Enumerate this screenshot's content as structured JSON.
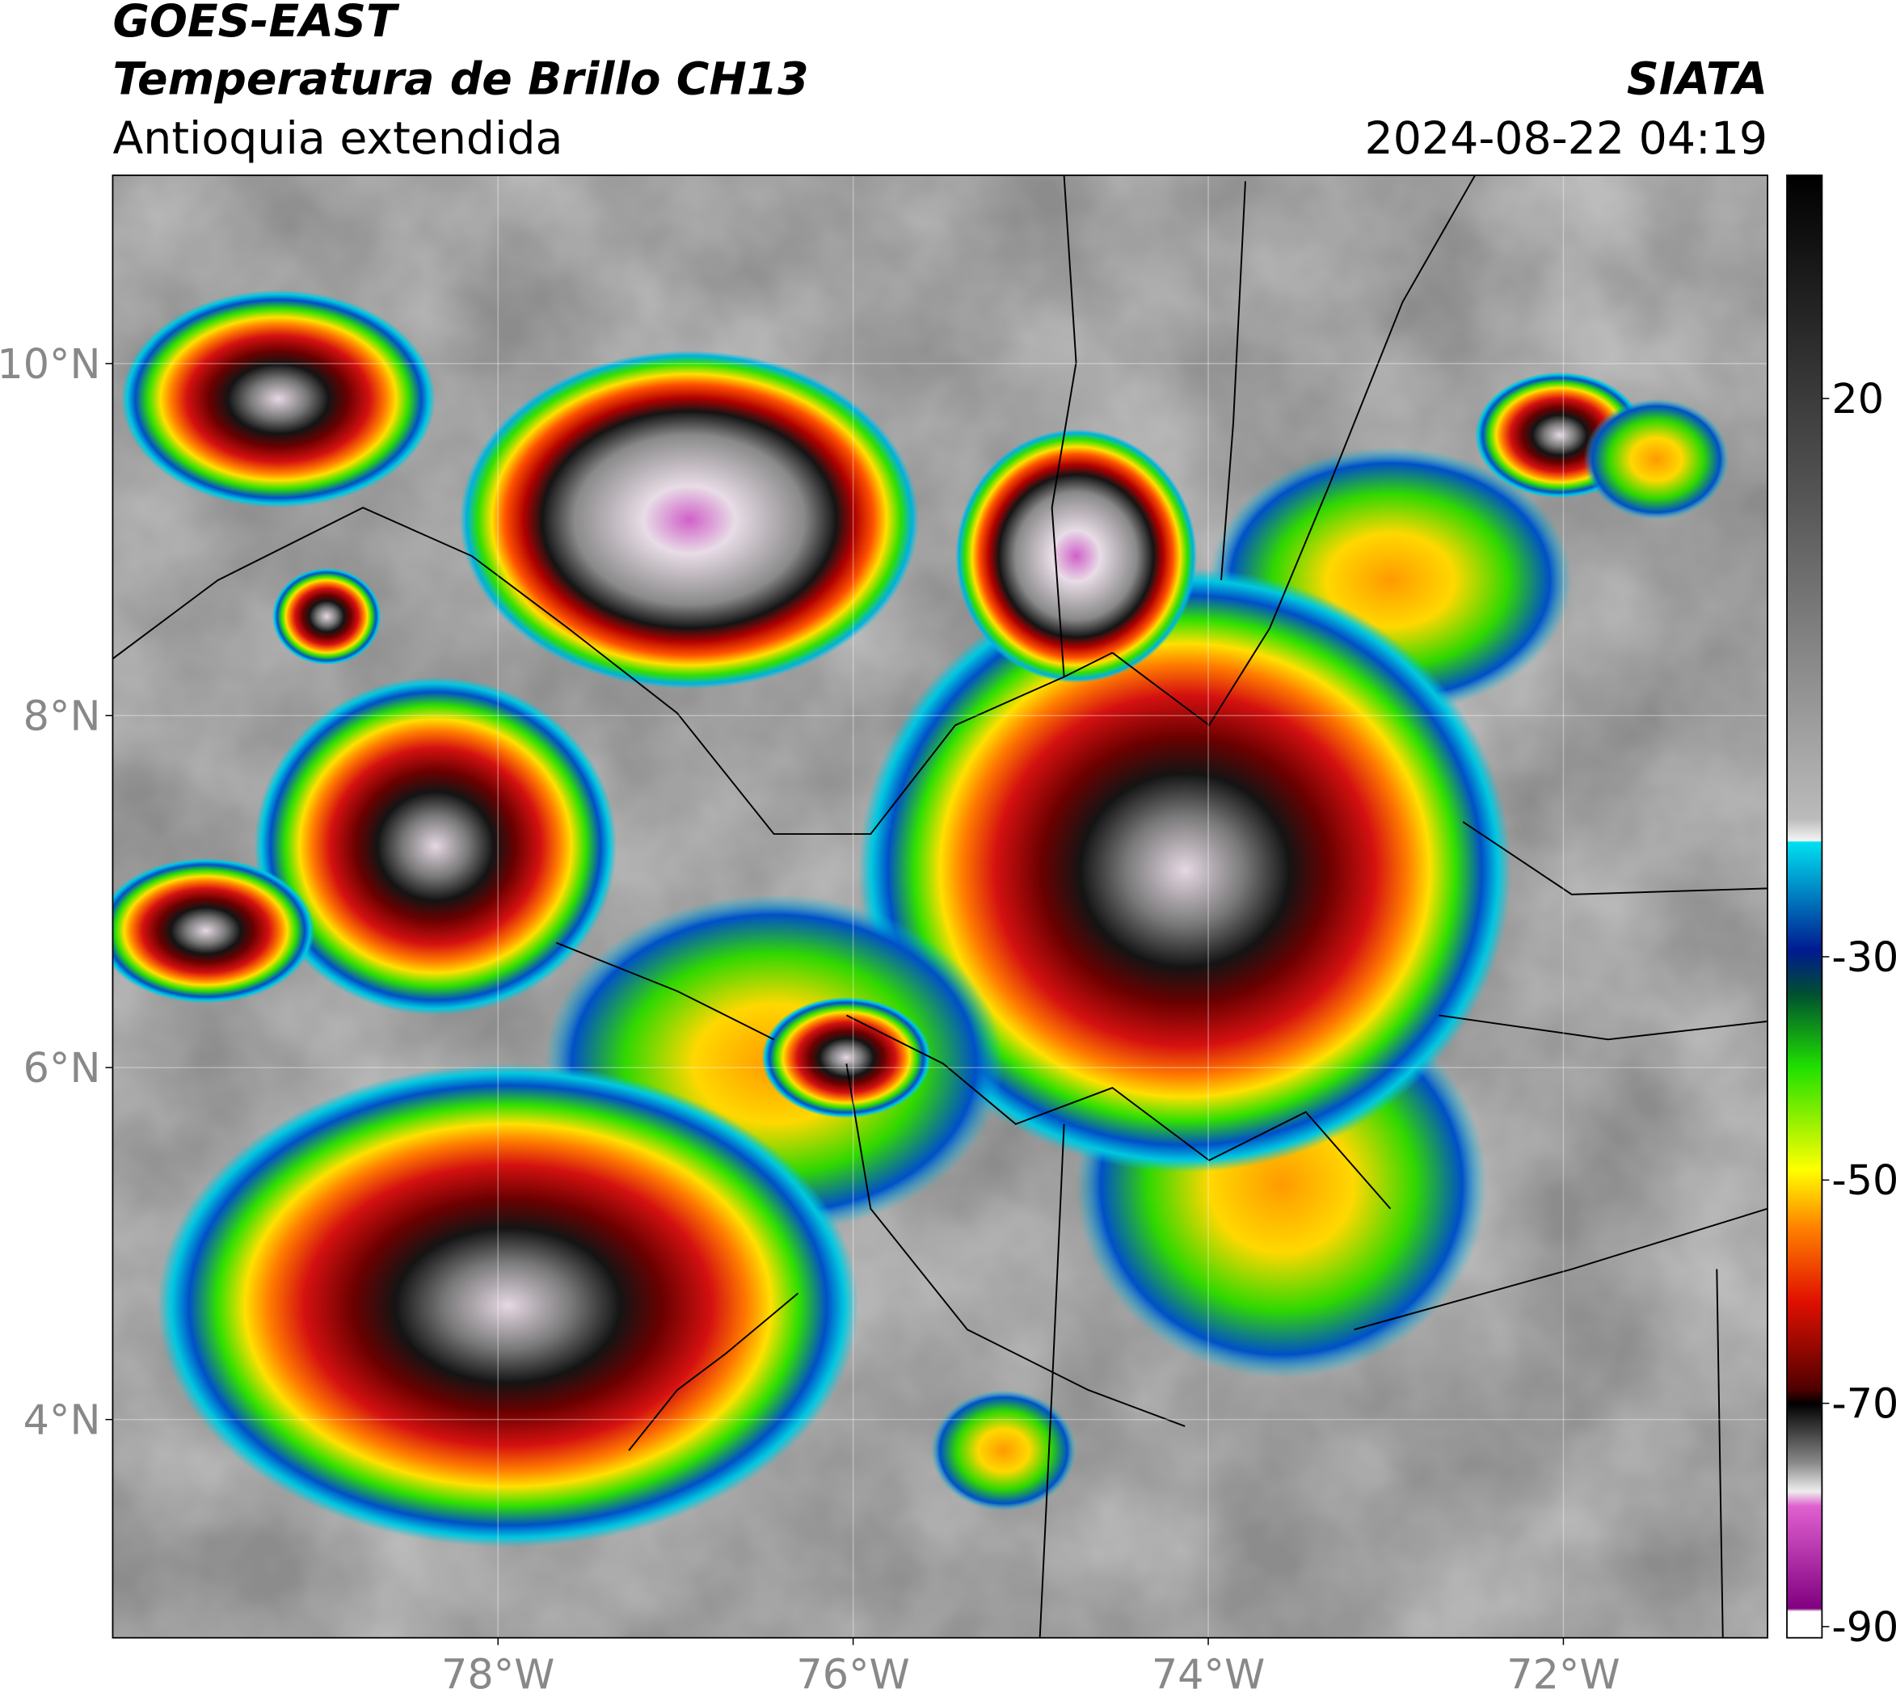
{
  "header": {
    "title": "GOES-EAST",
    "subtitle": "Temperatura de Brillo CH13",
    "region": "Antioquia extendida",
    "source": "SIATA",
    "timestamp": "2024-08-22 04:19"
  },
  "map": {
    "xlim": [
      -80.17,
      -70.85
    ],
    "ylim": [
      2.76,
      11.07
    ],
    "xticks": [
      {
        "value": -78,
        "label": "78°W"
      },
      {
        "value": -76,
        "label": "76°W"
      },
      {
        "value": -74,
        "label": "74°W"
      },
      {
        "value": -72,
        "label": "72°W"
      }
    ],
    "yticks": [
      {
        "value": 4,
        "label": "4°N"
      },
      {
        "value": 6,
        "label": "6°N"
      },
      {
        "value": 8,
        "label": "8°N"
      },
      {
        "value": 10,
        "label": "10°N"
      }
    ],
    "grid": true
  },
  "colorbar": {
    "lim": [
      -91,
      40
    ],
    "ticks": [
      -90,
      -70,
      -50,
      -30,
      20
    ]
  }
}
